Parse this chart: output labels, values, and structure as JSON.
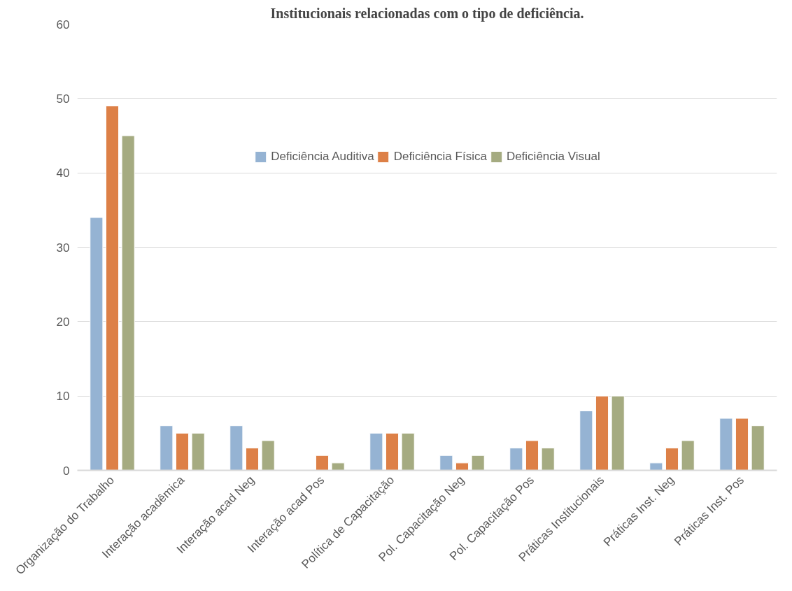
{
  "chart_data": {
    "type": "bar",
    "title": "Institucionais relacionadas com o tipo de deficiência.",
    "categories": [
      "Organização do Trabalho",
      "Interação acadêmica",
      "Interação acad Neg",
      "Interação acad Pos",
      "Política de Capacitação",
      "Pol. Capacitação Neg",
      "Pol. Capacitação Pos",
      "Práticas Institucionais",
      "Práticas Inst. Neg",
      "Práticas Inst. Pos"
    ],
    "series": [
      {
        "name": "Deficiência Auditiva",
        "color": "#95b3d3",
        "values": [
          34,
          6,
          6,
          null,
          5,
          2,
          3,
          8,
          1,
          7
        ]
      },
      {
        "name": "Deficiência Física",
        "color": "#dd8047",
        "values": [
          49,
          5,
          3,
          2,
          5,
          1,
          4,
          10,
          3,
          7
        ]
      },
      {
        "name": "Deficiência Visual",
        "color": "#a5ab81",
        "values": [
          45,
          5,
          4,
          1,
          5,
          2,
          3,
          10,
          4,
          6
        ]
      }
    ],
    "ylim": [
      0,
      60
    ],
    "yticks": [
      0,
      10,
      20,
      30,
      40,
      50,
      60
    ],
    "grid": "y",
    "legend": "top"
  }
}
